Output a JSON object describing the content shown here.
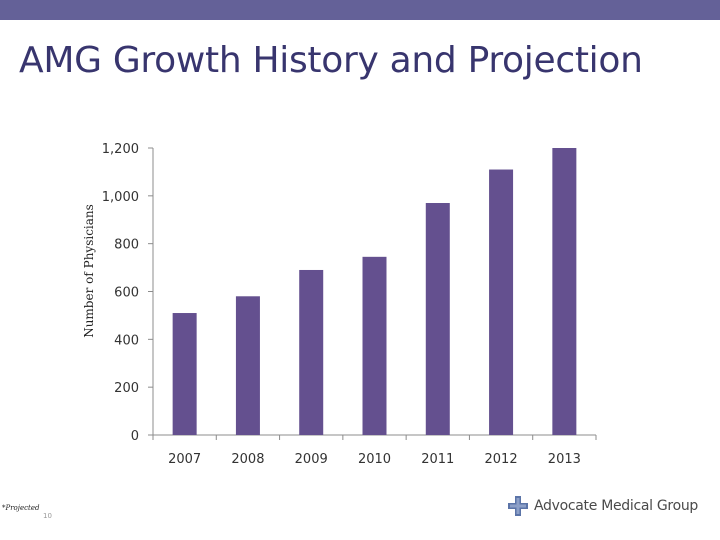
{
  "slide": {
    "title": "AMG Growth History and Projection",
    "footnote": "*Projected",
    "page_number": "10"
  },
  "logo": {
    "text": "Advocate Medical Group",
    "icon": "cross-logo-icon",
    "color": "#5b74a8"
  },
  "colors": {
    "top_bar": "#646198",
    "title": "#38356e",
    "bar": "#64508f"
  },
  "chart_data": {
    "type": "bar",
    "title": "",
    "xlabel": "",
    "ylabel": "Number of Physicians",
    "categories": [
      "2007",
      "2008",
      "2009",
      "2010",
      "2011",
      "2012",
      "2013"
    ],
    "values": [
      510,
      580,
      690,
      745,
      970,
      1110,
      1200
    ],
    "ylim": [
      0,
      1200
    ],
    "yticks": [
      0,
      200,
      400,
      600,
      800,
      1000,
      1200
    ],
    "ytick_labels": [
      "0",
      "200",
      "400",
      "600",
      "800",
      "1,000",
      "1,200"
    ],
    "grid": false,
    "legend": "none"
  }
}
